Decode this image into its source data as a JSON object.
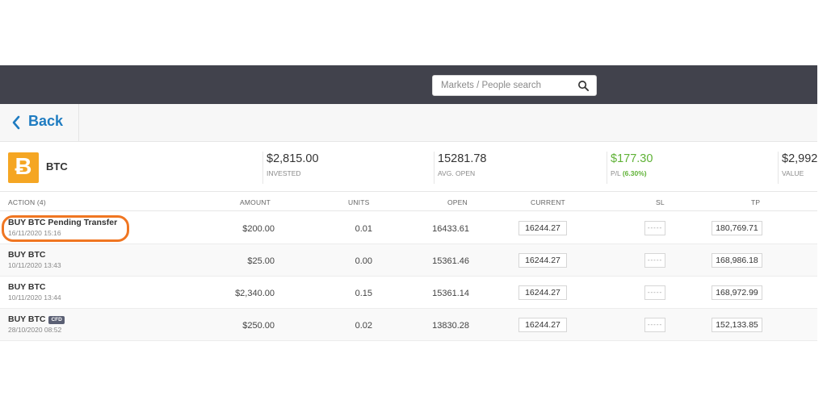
{
  "search": {
    "placeholder": "Markets / People search"
  },
  "nav": {
    "back_label": "Back"
  },
  "instrument": {
    "logo": "bitcoin-icon",
    "logo_glyph": "Ƀ",
    "name": "BTC",
    "invested": {
      "value": "$2,815.00",
      "label": "INVESTED"
    },
    "avg_open": {
      "value": "15281.78",
      "label": "AVG. OPEN"
    },
    "pl": {
      "value": "$177.30",
      "label": "P/L",
      "pct": "(6.30%)"
    },
    "total": {
      "value": "$2,992.",
      "label": "VALUE"
    }
  },
  "columns": {
    "action": "ACTION (4)",
    "amount": "AMOUNT",
    "units": "UNITS",
    "open": "OPEN",
    "current": "CURRENT",
    "sl": "SL",
    "tp": "TP"
  },
  "positions": [
    {
      "title": "BUY BTC Pending Transfer",
      "date": "16/11/2020 15:16",
      "amount": "$200.00",
      "units": "0.01",
      "open": "16433.61",
      "current": "16244.27",
      "sl": "-----",
      "tp": "180,769.71"
    },
    {
      "title": "BUY BTC",
      "date": "10/11/2020 13:43",
      "amount": "$25.00",
      "units": "0.00",
      "open": "15361.46",
      "current": "16244.27",
      "sl": "-----",
      "tp": "168,986.18"
    },
    {
      "title": "BUY BTC",
      "date": "10/11/2020 13:44",
      "amount": "$2,340.00",
      "units": "0.15",
      "open": "15361.14",
      "current": "16244.27",
      "sl": "-----",
      "tp": "168,972.99"
    },
    {
      "title": "BUY BTC",
      "badge": "CFD",
      "date": "28/10/2020 08:52",
      "amount": "$250.00",
      "units": "0.02",
      "open": "13830.28",
      "current": "16244.27",
      "sl": "-----",
      "tp": "152,133.85"
    }
  ],
  "colors": {
    "topbar": "#41424c",
    "accent": "#1f7cc1",
    "profit": "#5fb236",
    "btc": "#f5a623",
    "highlight": "#f07622"
  }
}
